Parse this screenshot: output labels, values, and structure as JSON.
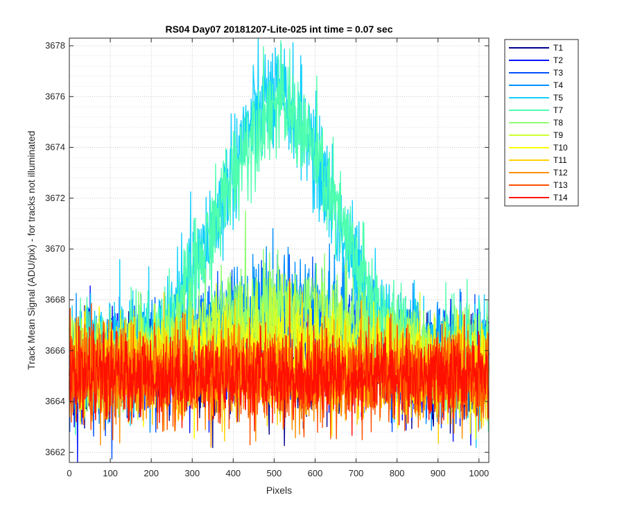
{
  "chart_data": {
    "type": "line",
    "title": "RS04 Day07 20181207-Lite-025 int time = 0.07 sec",
    "xlabel": "Pixels",
    "ylabel": "Track Mean Signal (ADU/pix) - for tracks not illuminated",
    "xlim": [
      0,
      1024
    ],
    "ylim": [
      3661.6,
      3678.3
    ],
    "xticks": [
      0,
      100,
      200,
      300,
      400,
      500,
      600,
      700,
      800,
      900,
      1000
    ],
    "yticks": [
      3662,
      3664,
      3666,
      3668,
      3670,
      3672,
      3674,
      3676,
      3678
    ],
    "grid": true,
    "minor_grid": true,
    "legend_position": "outside-top-right",
    "series": [
      {
        "name": "T1",
        "color": "#00008f",
        "baseline": 3665.3,
        "noise": 0.9,
        "hump": 0.0,
        "hump_center": 512,
        "hump_width": 230
      },
      {
        "name": "T2",
        "color": "#0010ff",
        "baseline": 3665.4,
        "noise": 1.0,
        "hump": 0.5,
        "hump_center": 512,
        "hump_width": 230
      },
      {
        "name": "T3",
        "color": "#0050ff",
        "baseline": 3665.4,
        "noise": 1.0,
        "hump": 1.5,
        "hump_center": 512,
        "hump_width": 240
      },
      {
        "name": "T4",
        "color": "#0090ff",
        "baseline": 3665.6,
        "noise": 1.0,
        "hump": 2.4,
        "hump_center": 512,
        "hump_width": 250
      },
      {
        "name": "T5",
        "color": "#10cfff",
        "baseline": 3665.5,
        "noise": 1.1,
        "hump": 10.5,
        "hump_center": 505,
        "hump_width": 190
      },
      {
        "name": "T7",
        "color": "#4fffaf",
        "baseline": 3665.6,
        "noise": 1.0,
        "hump": 10.0,
        "hump_center": 510,
        "hump_width": 195
      },
      {
        "name": "T8",
        "color": "#8fff6f",
        "baseline": 3665.4,
        "noise": 0.9,
        "hump": 2.5,
        "hump_center": 512,
        "hump_width": 260
      },
      {
        "name": "T9",
        "color": "#cfff30",
        "baseline": 3665.3,
        "noise": 0.9,
        "hump": 1.6,
        "hump_center": 512,
        "hump_width": 260
      },
      {
        "name": "T10",
        "color": "#ffff00",
        "baseline": 3665.2,
        "noise": 0.9,
        "hump": 0.6,
        "hump_center": 512,
        "hump_width": 260
      },
      {
        "name": "T11",
        "color": "#ffcf00",
        "baseline": 3665.1,
        "noise": 0.9,
        "hump": 0.0,
        "hump_center": 512,
        "hump_width": 260
      },
      {
        "name": "T12",
        "color": "#ff8f00",
        "baseline": 3665.0,
        "noise": 0.9,
        "hump": 0.0,
        "hump_center": 512,
        "hump_width": 260
      },
      {
        "name": "T13",
        "color": "#ff5000",
        "baseline": 3665.0,
        "noise": 0.9,
        "hump": 0.0,
        "hump_center": 512,
        "hump_width": 260
      },
      {
        "name": "T14",
        "color": "#ff1000",
        "baseline": 3665.0,
        "noise": 0.8,
        "hump": 0.0,
        "hump_center": 512,
        "hump_width": 260
      }
    ]
  }
}
